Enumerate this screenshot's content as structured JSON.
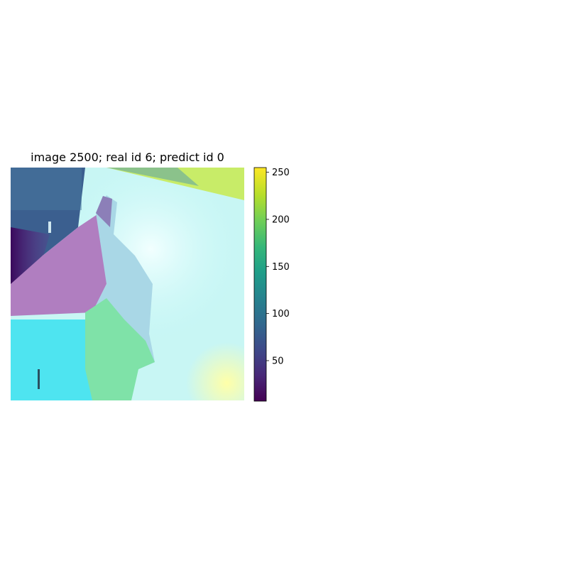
{
  "chart_data": {
    "type": "heatmap",
    "title": "image 2500; real id 6; predict id 0",
    "xlabel": "",
    "ylabel": "",
    "axes_visible": false,
    "colormap": "viridis",
    "colorbar": {
      "range": [
        7,
        255
      ],
      "ticks": [
        50,
        100,
        150,
        200,
        250
      ],
      "tick_labels": [
        "50",
        "100",
        "150",
        "200",
        "250"
      ]
    },
    "overlay": "saliency heatmap blended over photo of a horse's head and neck"
  },
  "colors": {
    "viridis": [
      "#440154",
      "#482878",
      "#3e4989",
      "#31688e",
      "#26828e",
      "#1f9e89",
      "#35b779",
      "#6ece58",
      "#b5de2b",
      "#fde725"
    ]
  }
}
